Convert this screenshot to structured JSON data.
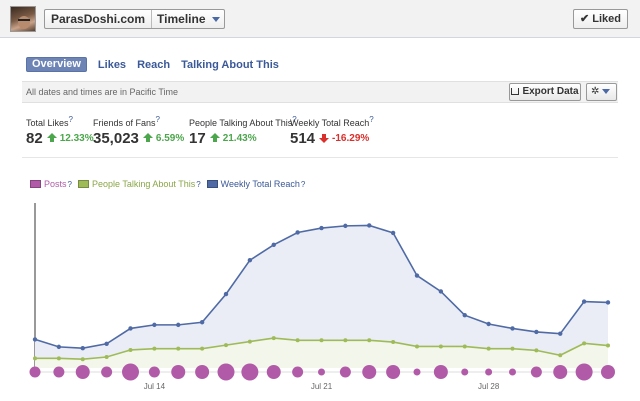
{
  "header": {
    "page_name": "ParasDoshi.com",
    "view_label": "Timeline",
    "liked_label": "Liked"
  },
  "tabs": [
    {
      "label": "Overview",
      "active": true
    },
    {
      "label": "Likes",
      "active": false
    },
    {
      "label": "Reach",
      "active": false
    },
    {
      "label": "Talking About This",
      "active": false
    }
  ],
  "toolbar": {
    "timezone_note": "All dates and times are in Pacific Time",
    "export_label": "Export Data",
    "settings_icon": "gear-icon"
  },
  "stats": [
    {
      "label": "Total Likes",
      "value": "82",
      "change": "12.33%",
      "direction": "up"
    },
    {
      "label": "Friends of Fans",
      "value": "35,023",
      "change": "6.59%",
      "direction": "up"
    },
    {
      "label": "People Talking About This",
      "value": "17",
      "change": "21.43%",
      "direction": "up"
    },
    {
      "label": "Weekly Total Reach",
      "value": "514",
      "change": "-16.29%",
      "direction": "down"
    }
  ],
  "help_mark": "?",
  "colors": {
    "posts": "#b15ba8",
    "talking": "#9fbb58",
    "reach": "#4f6aa5",
    "up": "#4ca64c",
    "down": "#d9302c",
    "link": "#3b5998"
  },
  "chart_data": {
    "type": "line",
    "x_tick_labels": [
      "Jul 14",
      "Jul 21",
      "Jul 28"
    ],
    "x_tick_index": [
      5,
      12,
      19
    ],
    "legend": [
      "Posts",
      "People Talking About This",
      "Weekly Total Reach"
    ],
    "ylim": [
      0,
      40
    ],
    "series": [
      {
        "name": "Weekly Total Reach",
        "values": [
          6.5,
          4.8,
          4.5,
          5.5,
          9.0,
          9.8,
          9.8,
          10.4,
          16.8,
          24.5,
          28.0,
          30.8,
          31.8,
          32.3,
          32.4,
          30.7,
          21.0,
          17.4,
          12.0,
          10.0,
          9.0,
          8.2,
          7.8,
          15.1,
          14.9
        ]
      },
      {
        "name": "People Talking About This",
        "values": [
          2.2,
          2.2,
          2.0,
          2.5,
          4.1,
          4.4,
          4.4,
          4.4,
          5.2,
          6.0,
          6.8,
          6.3,
          6.3,
          6.3,
          6.3,
          5.9,
          4.9,
          4.9,
          4.9,
          4.4,
          4.4,
          4.0,
          2.9,
          5.6,
          5.1
        ]
      },
      {
        "name": "Posts",
        "counts": [
          1,
          1,
          2,
          1,
          3,
          1,
          2,
          2,
          3,
          3,
          2,
          1,
          0,
          1,
          2,
          2,
          0,
          2,
          0,
          0,
          0,
          1,
          2,
          3,
          2
        ]
      }
    ]
  }
}
